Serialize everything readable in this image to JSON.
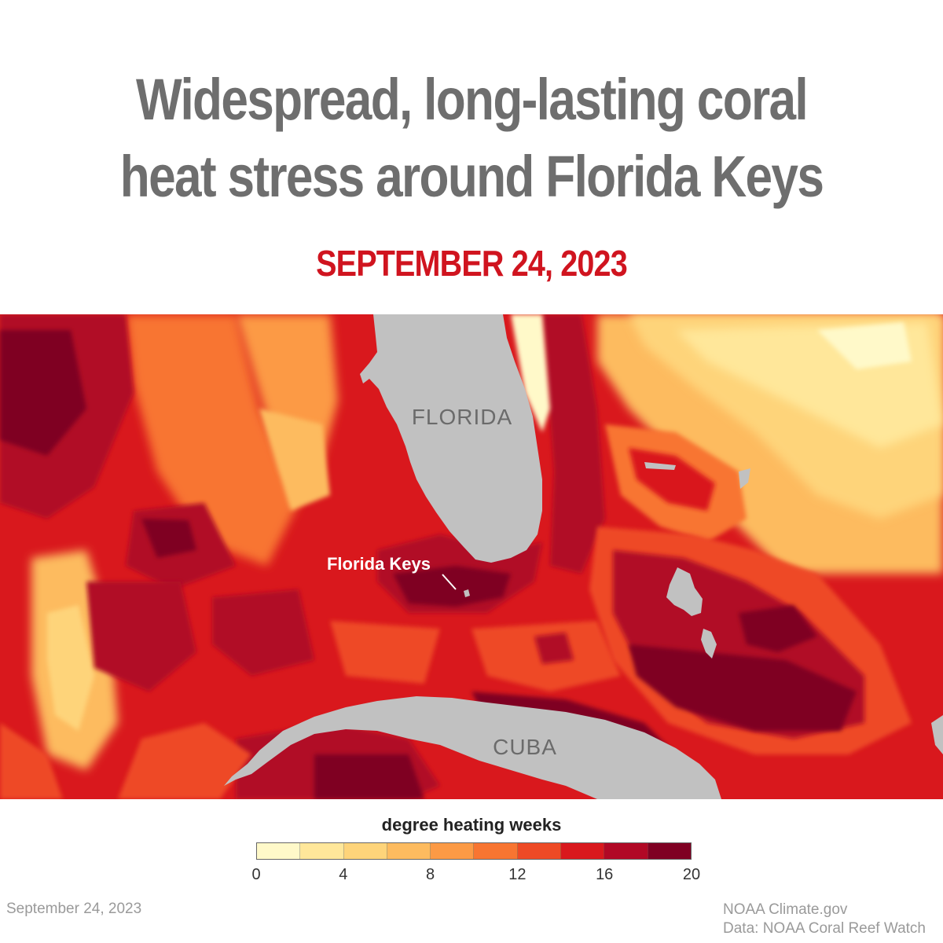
{
  "title": {
    "line1": "Widespread, long-lasting coral",
    "line2": "heat stress around Florida Keys"
  },
  "date_heading": "SEPTEMBER 24, 2023",
  "map": {
    "labels": {
      "florida": "FLORIDA",
      "cuba": "CUBA",
      "florida_keys": "Florida Keys"
    },
    "land_color": "#c1c1c1"
  },
  "legend": {
    "title": "degree heating weeks",
    "ticks": [
      "0",
      "4",
      "8",
      "12",
      "16",
      "20"
    ],
    "colors": [
      "#fff9c9",
      "#ffe79a",
      "#fed47a",
      "#fdbb5f",
      "#fc9a45",
      "#f87531",
      "#ee4a25",
      "#d9181d",
      "#b10825",
      "#7f0022"
    ]
  },
  "footer": {
    "date": "September 24, 2023",
    "credit": "NOAA Climate.gov",
    "source": "Data: NOAA Coral Reef Watch"
  }
}
